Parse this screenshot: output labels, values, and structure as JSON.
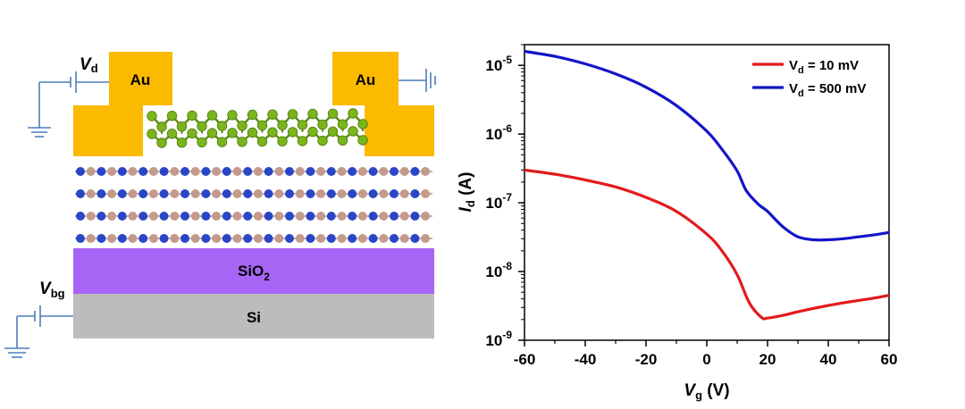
{
  "schematic": {
    "left_electrode": "Au",
    "right_electrode": "Au",
    "drain_label": "V",
    "drain_sub": "d",
    "gate_label": "V",
    "gate_sub": "bg",
    "oxide_label": "SiO",
    "oxide_sub": "2",
    "substrate_label": "Si",
    "colors": {
      "gold": "#fbb900",
      "oxide": "#a864f4",
      "substrate": "#bcbcbc",
      "flake_atom": "#7ab51c",
      "hbn_boron": "#c49a8c",
      "hbn_nitrogen": "#2a46c6",
      "wire": "#4a7ebb"
    }
  },
  "chart_data": {
    "type": "line",
    "xlabel": "V",
    "xlabel_sub": "g",
    "xlabel_unit": " (V)",
    "ylabel": "I",
    "ylabel_sub": "d",
    "ylabel_unit": " (A)",
    "xlim": [
      -60,
      60
    ],
    "ylim": [
      1e-09,
      2e-05
    ],
    "yscale": "log",
    "x_ticks": [
      "-60",
      "-40",
      "-20",
      "0",
      "20",
      "40",
      "60"
    ],
    "y_ticks": [
      {
        "base": "10",
        "exp": "-9"
      },
      {
        "base": "10",
        "exp": "-8"
      },
      {
        "base": "10",
        "exp": "-7"
      },
      {
        "base": "10",
        "exp": "-6"
      },
      {
        "base": "10",
        "exp": "-5"
      }
    ],
    "legend_position": "top-right",
    "series": [
      {
        "name": "V",
        "name_sub": "d",
        "name_suffix": " = 10 mV",
        "color": "#e31a1c",
        "x": [
          -60,
          -50,
          -40,
          -30,
          -20,
          -10,
          0,
          5,
          10,
          14,
          18,
          20,
          25,
          30,
          35,
          40,
          45,
          50,
          55,
          60
        ],
        "y": [
          3e-07,
          2.6e-07,
          2.15e-07,
          1.7e-07,
          1.2e-07,
          7.5e-08,
          3.5e-08,
          2e-08,
          9e-09,
          3.5e-09,
          2.15e-09,
          2.1e-09,
          2.3e-09,
          2.6e-09,
          2.9e-09,
          3.2e-09,
          3.5e-09,
          3.8e-09,
          4.1e-09,
          4.5e-09
        ]
      },
      {
        "name": "V",
        "name_sub": "d",
        "name_suffix": " = 500 mV",
        "color": "#1414c8",
        "x": [
          -60,
          -50,
          -40,
          -30,
          -20,
          -10,
          0,
          5,
          10,
          13,
          17,
          20,
          25,
          30,
          35,
          40,
          45,
          50,
          55,
          60
        ],
        "y": [
          1.6e-05,
          1.35e-05,
          1.05e-05,
          7.5e-06,
          4.8e-06,
          2.6e-06,
          1.1e-06,
          6e-07,
          2.9e-07,
          1.5e-07,
          9.5e-08,
          7.5e-08,
          4.5e-08,
          3.2e-08,
          2.9e-08,
          2.9e-08,
          3e-08,
          3.2e-08,
          3.4e-08,
          3.7e-08
        ]
      }
    ]
  }
}
